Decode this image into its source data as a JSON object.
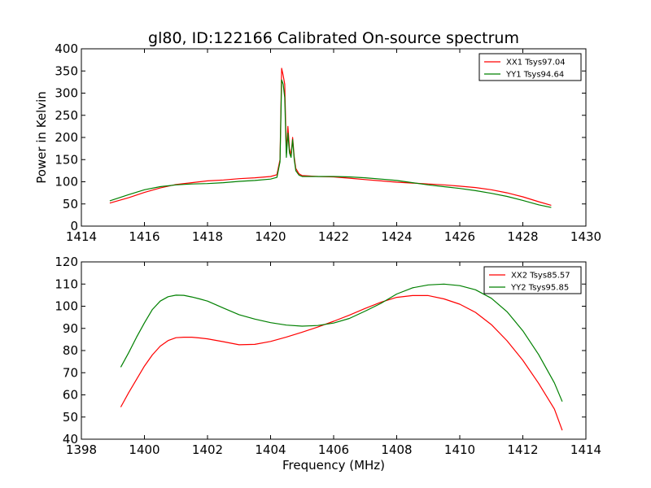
{
  "figure_title": "gl80, ID:122166 Calibrated On-source spectrum",
  "shared_xlabel": "Frequency (MHz)",
  "chart_data": [
    {
      "type": "line",
      "ylabel": "Power in Kelvin",
      "xlabel": "",
      "xlim": [
        1414,
        1430
      ],
      "ylim": [
        0,
        400
      ],
      "xticks": [
        1414,
        1416,
        1418,
        1420,
        1422,
        1424,
        1426,
        1428,
        1430
      ],
      "yticks": [
        0,
        50,
        100,
        150,
        200,
        250,
        300,
        350,
        400
      ],
      "grid": false,
      "legend_position": "top-right",
      "series": [
        {
          "name": "XX1 Tsys97.04",
          "color": "#ff0000",
          "x": [
            1414.9,
            1415.5,
            1416.0,
            1416.5,
            1417.0,
            1417.5,
            1418.0,
            1418.5,
            1419.0,
            1419.5,
            1420.0,
            1420.2,
            1420.3,
            1420.35,
            1420.4,
            1420.45,
            1420.5,
            1420.55,
            1420.6,
            1420.65,
            1420.7,
            1420.75,
            1420.8,
            1420.9,
            1421.0,
            1421.5,
            1422.0,
            1422.5,
            1423.0,
            1423.5,
            1424.0,
            1424.5,
            1425.0,
            1425.5,
            1426.0,
            1426.5,
            1427.0,
            1427.5,
            1428.0,
            1428.5,
            1428.9
          ],
          "y": [
            52,
            64,
            76,
            86,
            94,
            98,
            102,
            104,
            107,
            109,
            112,
            116,
            150,
            356,
            340,
            320,
            165,
            225,
            175,
            160,
            200,
            155,
            130,
            118,
            114,
            112,
            111,
            108,
            105,
            102,
            99,
            97,
            95,
            93,
            90,
            87,
            82,
            75,
            66,
            55,
            47
          ]
        },
        {
          "name": "YY1 Tsys94.64",
          "color": "#008000",
          "x": [
            1414.9,
            1415.5,
            1416.0,
            1416.5,
            1417.0,
            1417.5,
            1418.0,
            1418.5,
            1419.0,
            1419.5,
            1420.0,
            1420.2,
            1420.3,
            1420.35,
            1420.4,
            1420.45,
            1420.5,
            1420.55,
            1420.6,
            1420.65,
            1420.7,
            1420.75,
            1420.8,
            1420.9,
            1421.0,
            1421.5,
            1422.0,
            1422.5,
            1423.0,
            1423.5,
            1424.0,
            1424.5,
            1425.0,
            1425.5,
            1426.0,
            1426.5,
            1427.0,
            1427.5,
            1428.0,
            1428.5,
            1428.9
          ],
          "y": [
            57,
            71,
            82,
            89,
            93,
            95,
            96,
            98,
            101,
            103,
            106,
            110,
            145,
            330,
            320,
            290,
            155,
            210,
            165,
            155,
            195,
            150,
            125,
            115,
            112,
            112,
            112,
            111,
            109,
            106,
            103,
            98,
            93,
            89,
            85,
            80,
            74,
            67,
            58,
            48,
            42
          ]
        }
      ]
    },
    {
      "type": "line",
      "ylabel": "",
      "xlabel": "Frequency (MHz)",
      "xlim": [
        1398,
        1414
      ],
      "ylim": [
        40,
        120
      ],
      "xticks": [
        1398,
        1400,
        1402,
        1404,
        1406,
        1408,
        1410,
        1412,
        1414
      ],
      "yticks": [
        40,
        50,
        60,
        70,
        80,
        90,
        100,
        110,
        120
      ],
      "grid": false,
      "legend_position": "top-right",
      "series": [
        {
          "name": "XX2 Tsys85.57",
          "color": "#ff0000",
          "x": [
            1399.25,
            1399.5,
            1399.75,
            1400.0,
            1400.25,
            1400.5,
            1400.75,
            1401.0,
            1401.25,
            1401.5,
            1401.75,
            1402.0,
            1402.5,
            1403.0,
            1403.5,
            1404.0,
            1404.5,
            1405.0,
            1405.5,
            1406.0,
            1406.5,
            1407.0,
            1407.5,
            1408.0,
            1408.5,
            1409.0,
            1409.5,
            1410.0,
            1410.5,
            1411.0,
            1411.5,
            1412.0,
            1412.5,
            1413.0,
            1413.25
          ],
          "y": [
            54.5,
            61,
            67,
            73,
            78,
            82,
            84.5,
            85.8,
            86,
            86,
            85.7,
            85.3,
            84,
            82.6,
            82.8,
            84.1,
            86.1,
            88.3,
            90.6,
            93.2,
            96,
            99,
            101.8,
            104,
            104.8,
            104.8,
            103.3,
            100.9,
            97.2,
            91.7,
            84.4,
            75.6,
            65.2,
            53.6,
            44
          ]
        },
        {
          "name": "YY2 Tsys95.85",
          "color": "#008000",
          "x": [
            1399.25,
            1399.5,
            1399.75,
            1400.0,
            1400.25,
            1400.5,
            1400.75,
            1401.0,
            1401.25,
            1401.5,
            1401.75,
            1402.0,
            1402.5,
            1403.0,
            1403.5,
            1404.0,
            1404.5,
            1405.0,
            1405.5,
            1406.0,
            1406.5,
            1407.0,
            1407.5,
            1408.0,
            1408.5,
            1409.0,
            1409.5,
            1410.0,
            1410.5,
            1411.0,
            1411.5,
            1412.0,
            1412.5,
            1413.0,
            1413.25
          ],
          "y": [
            72.5,
            79,
            86,
            92.5,
            98.5,
            102.3,
            104.3,
            105,
            104.9,
            104.2,
            103.3,
            102.3,
            99.2,
            96.2,
            94.2,
            92.6,
            91.5,
            91,
            91.3,
            92.4,
            94.5,
            97.8,
            101.3,
            105.5,
            108.3,
            109.6,
            110,
            109.3,
            107.4,
            103.6,
            97.5,
            88.9,
            78.2,
            65.4,
            57
          ]
        }
      ]
    }
  ]
}
